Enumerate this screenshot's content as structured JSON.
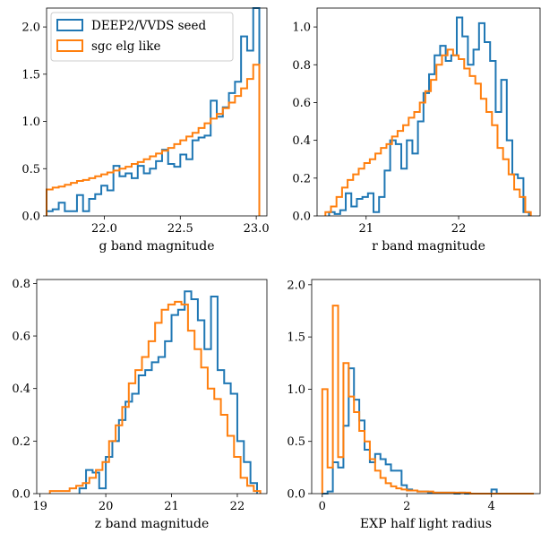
{
  "colors": {
    "seed": "#1f77b4",
    "sgc": "#ff7f0e"
  },
  "legend": {
    "seed": "DEEP2/VVDS seed",
    "sgc": "sgc elg like"
  },
  "chart_data": [
    {
      "type": "histogram",
      "xlabel": "g band magnitude",
      "xlim": [
        21.62,
        23.07
      ],
      "ylim": [
        0,
        2.2
      ],
      "xticks": [
        22.0,
        22.5,
        23.0
      ],
      "yticks": [
        0.0,
        0.5,
        1.0,
        1.5,
        2.0
      ],
      "xtick_labels": [
        "22.0",
        "22.5",
        "23.0"
      ],
      "ytick_labels": [
        "0.0",
        "0.5",
        "1.0",
        "1.5",
        "2.0"
      ],
      "legend_position": "upper-left",
      "series": [
        {
          "name": "DEEP2/VVDS seed",
          "color": "#1f77b4",
          "edges": [
            21.62,
            21.66,
            21.7,
            21.74,
            21.78,
            21.82,
            21.86,
            21.9,
            21.94,
            21.98,
            22.02,
            22.06,
            22.1,
            22.14,
            22.18,
            22.22,
            22.26,
            22.3,
            22.34,
            22.38,
            22.42,
            22.46,
            22.5,
            22.54,
            22.58,
            22.62,
            22.66,
            22.7,
            22.74,
            22.78,
            22.82,
            22.86,
            22.9,
            22.94,
            22.98,
            23.02
          ],
          "values": [
            0.05,
            0.07,
            0.14,
            0.05,
            0.05,
            0.22,
            0.05,
            0.18,
            0.23,
            0.32,
            0.27,
            0.53,
            0.42,
            0.45,
            0.4,
            0.53,
            0.45,
            0.5,
            0.58,
            0.7,
            0.55,
            0.52,
            0.65,
            0.6,
            0.8,
            0.83,
            0.85,
            1.22,
            1.05,
            1.15,
            1.3,
            1.42,
            1.9,
            1.75,
            2.2
          ]
        },
        {
          "name": "sgc elg like",
          "color": "#ff7f0e",
          "edges": [
            21.62,
            21.66,
            21.7,
            21.74,
            21.78,
            21.82,
            21.86,
            21.9,
            21.94,
            21.98,
            22.02,
            22.06,
            22.1,
            22.14,
            22.18,
            22.22,
            22.26,
            22.3,
            22.34,
            22.38,
            22.42,
            22.46,
            22.5,
            22.54,
            22.58,
            22.62,
            22.66,
            22.7,
            22.74,
            22.78,
            22.82,
            22.86,
            22.9,
            22.94,
            22.98,
            23.02
          ],
          "values": [
            0.28,
            0.3,
            0.31,
            0.33,
            0.35,
            0.37,
            0.38,
            0.4,
            0.42,
            0.44,
            0.46,
            0.48,
            0.5,
            0.52,
            0.55,
            0.57,
            0.6,
            0.63,
            0.66,
            0.69,
            0.72,
            0.76,
            0.8,
            0.84,
            0.88,
            0.93,
            0.98,
            1.03,
            1.08,
            1.14,
            1.2,
            1.27,
            1.35,
            1.45,
            1.6
          ]
        }
      ]
    },
    {
      "type": "histogram",
      "xlabel": "r band magnitude",
      "xlim": [
        20.47,
        22.88
      ],
      "ylim": [
        0,
        1.1
      ],
      "xticks": [
        21,
        22
      ],
      "yticks": [
        0.0,
        0.2,
        0.4,
        0.6,
        0.8,
        1.0
      ],
      "xtick_labels": [
        "21",
        "22"
      ],
      "ytick_labels": [
        "0.0",
        "0.2",
        "0.4",
        "0.6",
        "0.8",
        "1.0"
      ],
      "series": [
        {
          "name": "DEEP2/VVDS seed",
          "color": "#1f77b4",
          "edges": [
            20.6,
            20.66,
            20.72,
            20.78,
            20.84,
            20.9,
            20.96,
            21.02,
            21.08,
            21.14,
            21.2,
            21.26,
            21.32,
            21.38,
            21.44,
            21.5,
            21.56,
            21.62,
            21.68,
            21.74,
            21.8,
            21.86,
            21.92,
            21.98,
            22.04,
            22.1,
            22.16,
            22.22,
            22.28,
            22.34,
            22.4,
            22.46,
            22.52,
            22.58,
            22.64,
            22.7,
            22.76
          ],
          "values": [
            0.02,
            0.01,
            0.03,
            0.12,
            0.05,
            0.09,
            0.1,
            0.12,
            0.02,
            0.1,
            0.24,
            0.4,
            0.38,
            0.25,
            0.4,
            0.33,
            0.5,
            0.65,
            0.75,
            0.85,
            0.9,
            0.82,
            0.85,
            1.05,
            0.95,
            0.8,
            0.88,
            1.02,
            0.92,
            0.82,
            0.55,
            0.72,
            0.4,
            0.22,
            0.2,
            0.02
          ]
        },
        {
          "name": "sgc elg like",
          "color": "#ff7f0e",
          "edges": [
            20.56,
            20.62,
            20.68,
            20.74,
            20.8,
            20.86,
            20.92,
            20.98,
            21.04,
            21.1,
            21.16,
            21.22,
            21.28,
            21.34,
            21.4,
            21.46,
            21.52,
            21.58,
            21.64,
            21.7,
            21.76,
            21.82,
            21.88,
            21.94,
            22.0,
            22.06,
            22.12,
            22.18,
            22.24,
            22.3,
            22.36,
            22.42,
            22.48,
            22.54,
            22.6,
            22.66,
            22.72,
            22.78
          ],
          "values": [
            0.02,
            0.05,
            0.1,
            0.15,
            0.19,
            0.22,
            0.25,
            0.28,
            0.3,
            0.33,
            0.36,
            0.38,
            0.42,
            0.45,
            0.48,
            0.52,
            0.55,
            0.6,
            0.66,
            0.72,
            0.8,
            0.85,
            0.88,
            0.85,
            0.83,
            0.78,
            0.74,
            0.7,
            0.62,
            0.55,
            0.48,
            0.36,
            0.3,
            0.22,
            0.14,
            0.1,
            0.02
          ]
        }
      ]
    },
    {
      "type": "histogram",
      "xlabel": "z band magnitude",
      "xlim": [
        18.95,
        22.45
      ],
      "ylim": [
        0,
        0.815
      ],
      "xticks": [
        19,
        20,
        21,
        22
      ],
      "yticks": [
        0.0,
        0.2,
        0.4,
        0.6,
        0.8
      ],
      "xtick_labels": [
        "19",
        "20",
        "21",
        "22"
      ],
      "ytick_labels": [
        "0.0",
        "0.2",
        "0.4",
        "0.6",
        "0.8"
      ],
      "series": [
        {
          "name": "DEEP2/VVDS seed",
          "color": "#1f77b4",
          "edges": [
            19.6,
            19.7,
            19.8,
            19.9,
            20.0,
            20.1,
            20.2,
            20.3,
            20.4,
            20.5,
            20.6,
            20.7,
            20.8,
            20.9,
            21.0,
            21.1,
            21.2,
            21.3,
            21.4,
            21.5,
            21.6,
            21.7,
            21.8,
            21.9,
            22.0,
            22.1,
            22.2,
            22.3
          ],
          "values": [
            0.02,
            0.09,
            0.08,
            0.02,
            0.14,
            0.2,
            0.28,
            0.35,
            0.38,
            0.45,
            0.47,
            0.5,
            0.52,
            0.58,
            0.68,
            0.7,
            0.77,
            0.74,
            0.66,
            0.55,
            0.75,
            0.47,
            0.42,
            0.38,
            0.2,
            0.12,
            0.04
          ]
        },
        {
          "name": "sgc elg like",
          "color": "#ff7f0e",
          "edges": [
            19.15,
            19.25,
            19.35,
            19.45,
            19.55,
            19.65,
            19.75,
            19.85,
            19.95,
            20.05,
            20.15,
            20.25,
            20.35,
            20.45,
            20.55,
            20.65,
            20.75,
            20.85,
            20.95,
            21.05,
            21.15,
            21.25,
            21.35,
            21.45,
            21.55,
            21.65,
            21.75,
            21.85,
            21.95,
            22.05,
            22.15,
            22.25,
            22.35
          ],
          "values": [
            0.01,
            0.01,
            0.01,
            0.02,
            0.03,
            0.04,
            0.06,
            0.09,
            0.12,
            0.2,
            0.26,
            0.33,
            0.42,
            0.47,
            0.52,
            0.58,
            0.65,
            0.7,
            0.72,
            0.73,
            0.72,
            0.62,
            0.55,
            0.48,
            0.4,
            0.36,
            0.3,
            0.22,
            0.14,
            0.06,
            0.03,
            0.01
          ]
        }
      ]
    },
    {
      "type": "histogram",
      "xlabel": "EXP half light radius",
      "xlim": [
        -0.25,
        5.15
      ],
      "ylim": [
        0,
        2.05
      ],
      "xticks": [
        0,
        2,
        4
      ],
      "yticks": [
        0.0,
        0.5,
        1.0,
        1.5,
        2.0
      ],
      "xtick_labels": [
        "0",
        "2",
        "4"
      ],
      "ytick_labels": [
        "0.0",
        "0.5",
        "1.0",
        "1.5",
        "2.0"
      ],
      "series": [
        {
          "name": "DEEP2/VVDS seed",
          "color": "#1f77b4",
          "edges": [
            0.0,
            0.125,
            0.25,
            0.375,
            0.5,
            0.625,
            0.75,
            0.875,
            1.0,
            1.125,
            1.25,
            1.375,
            1.5,
            1.625,
            1.75,
            1.875,
            2.0,
            2.125,
            2.25,
            2.375,
            2.5,
            2.625,
            2.75,
            2.875,
            3.0,
            3.125,
            3.25,
            3.375,
            3.5,
            3.625,
            3.75,
            3.875,
            4.0,
            4.125,
            4.25,
            4.375,
            4.5,
            4.625,
            4.75,
            4.875,
            5.0
          ],
          "values": [
            0.0,
            0.02,
            0.3,
            0.25,
            0.65,
            1.2,
            0.9,
            0.7,
            0.42,
            0.3,
            0.38,
            0.33,
            0.28,
            0.22,
            0.22,
            0.08,
            0.04,
            0.03,
            0.02,
            0.02,
            0.01,
            0.01,
            0.01,
            0.01,
            0.01,
            0.0,
            0.01,
            0.0,
            0.0,
            0.0,
            0.0,
            0.0,
            0.04,
            0.0,
            0.0,
            0.0,
            0.0,
            0.0,
            0.0,
            0.0
          ]
        },
        {
          "name": "sgc elg like",
          "color": "#ff7f0e",
          "edges": [
            0.0,
            0.125,
            0.25,
            0.375,
            0.5,
            0.625,
            0.75,
            0.875,
            1.0,
            1.125,
            1.25,
            1.375,
            1.5,
            1.625,
            1.75,
            1.875,
            2.0,
            2.125,
            2.25,
            2.375,
            2.5,
            2.625,
            2.75,
            2.875,
            3.0,
            3.125,
            3.25,
            3.375,
            3.5,
            3.625,
            3.75,
            3.875,
            4.0,
            4.125,
            4.25,
            4.375,
            4.5,
            4.625,
            4.75,
            4.875,
            5.0
          ],
          "values": [
            1.0,
            0.25,
            1.8,
            0.35,
            1.25,
            0.93,
            0.78,
            0.6,
            0.5,
            0.33,
            0.22,
            0.15,
            0.1,
            0.07,
            0.05,
            0.04,
            0.03,
            0.03,
            0.02,
            0.02,
            0.02,
            0.01,
            0.01,
            0.01,
            0.01,
            0.01,
            0.01,
            0.01,
            0.0,
            0.0,
            0.0,
            0.0,
            0.0,
            0.0,
            0.0,
            0.0,
            0.0,
            0.0,
            0.0,
            0.0
          ]
        }
      ]
    }
  ]
}
